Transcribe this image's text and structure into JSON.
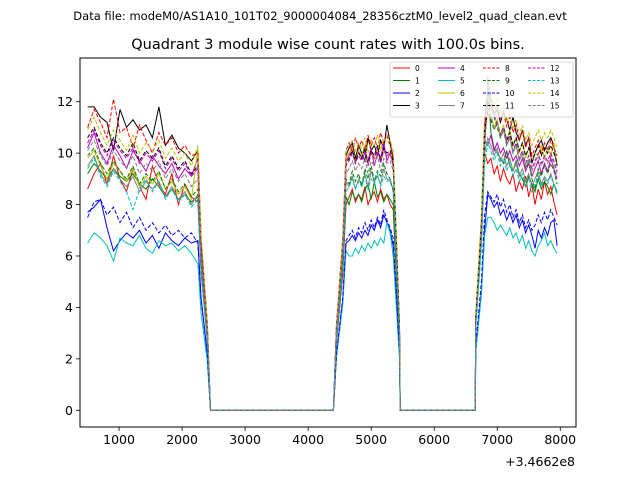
{
  "suptitle": "Data file: modeM0/AS1A10_101T02_9000004084_28356cztM0_level2_quad_clean.evt",
  "chart_data": {
    "type": "line",
    "title": "Quadrant 3 module wise count rates with 100.0s bins.",
    "xlabel": "",
    "ylabel": "",
    "x_offset_label": "+3.4662e8",
    "xlim": [
      380,
      8250
    ],
    "ylim": [
      -0.65,
      13.7
    ],
    "xticks": [
      1000,
      2000,
      3000,
      4000,
      5000,
      6000,
      7000,
      8000
    ],
    "yticks": [
      0,
      2,
      4,
      6,
      8,
      10,
      12
    ],
    "grid": false,
    "legend_position": "top-right",
    "segments": [
      {
        "start": 500,
        "end": 2250,
        "count": 18
      },
      {
        "start": 2300,
        "end": 2400,
        "count": 2
      },
      {
        "start": 2450,
        "end": 4400,
        "count": 20
      },
      {
        "start": 4450,
        "end": 4550,
        "count": 2
      },
      {
        "start": 4600,
        "end": 5350,
        "count": 16
      },
      {
        "start": 5400,
        "end": 5450,
        "count": 2
      },
      {
        "start": 5460,
        "end": 6650,
        "count": 13
      },
      {
        "start": 6660,
        "end": 6750,
        "count": 2
      },
      {
        "start": 6800,
        "end": 7950,
        "count": 24
      }
    ],
    "series": [
      {
        "name": "0",
        "color": "#ff0000",
        "dash": "solid",
        "levels": [
          8.6,
          9.2,
          9.6,
          8.8,
          9.9,
          9.0,
          8.5,
          9.4,
          8.7,
          8.2,
          9.5,
          8.8,
          8.4,
          9.2,
          8.0,
          8.8,
          8.3,
          8.1
        ],
        "levels2": [
          8.0,
          8.3,
          8.6,
          8.1,
          8.4,
          8.2,
          8.7,
          8.0,
          8.3,
          8.5,
          8.1,
          8.6,
          8.2,
          8.4,
          8.0,
          7.8
        ],
        "levels3": [
          10.0,
          9.6,
          9.8,
          9.2,
          9.5,
          8.9,
          9.4,
          9.0,
          8.8,
          9.2,
          8.5,
          8.9,
          8.6,
          9.1,
          8.3,
          8.8,
          8.0,
          8.6,
          8.2,
          8.9,
          8.4,
          8.7,
          8.1,
          7.6
        ]
      },
      {
        "name": "1",
        "color": "#008000",
        "dash": "solid",
        "levels": [
          9.2,
          9.6,
          9.3,
          9.0,
          9.4,
          9.1,
          8.9,
          9.2,
          8.8,
          8.6,
          9.0,
          8.7,
          8.3,
          8.6,
          8.2,
          8.4,
          8.1,
          8.3
        ],
        "levels2": [
          8.3,
          8.0,
          8.5,
          8.2,
          8.4,
          8.1,
          8.6,
          8.8,
          8.2,
          8.9,
          8.3,
          8.5,
          8.1,
          8.4,
          8.2,
          8.0
        ],
        "levels3": [
          10.5,
          13.0,
          10.8,
          10.2,
          10.0,
          9.8,
          9.6,
          10.1,
          9.5,
          9.3,
          9.7,
          9.2,
          9.0,
          8.7,
          9.1,
          8.8,
          8.5,
          9.0,
          8.6,
          8.9,
          8.7,
          8.4,
          8.8,
          8.5
        ]
      },
      {
        "name": "2",
        "color": "#0000ff",
        "dash": "solid",
        "levels": [
          7.7,
          7.9,
          8.2,
          7.1,
          6.2,
          6.6,
          6.9,
          6.7,
          7.0,
          6.5,
          6.8,
          6.3,
          6.9,
          6.6,
          6.4,
          6.7,
          6.5,
          6.6
        ],
        "levels2": [
          6.5,
          6.6,
          6.8,
          6.6,
          6.9,
          6.7,
          7.0,
          6.8,
          7.2,
          7.0,
          7.4,
          7.1,
          7.6,
          7.3,
          7.0,
          6.4
        ],
        "levels3": [
          7.0,
          8.4,
          8.2,
          7.9,
          8.1,
          7.6,
          7.8,
          7.4,
          7.7,
          7.3,
          7.6,
          7.1,
          7.4,
          6.9,
          7.2,
          6.8,
          6.3,
          7.0,
          6.7,
          7.1,
          6.8,
          7.3,
          7.4,
          6.4
        ]
      },
      {
        "name": "3",
        "color": "#000000",
        "dash": "solid",
        "levels": [
          11.8,
          11.8,
          11.4,
          11.2,
          10.1,
          11.7,
          11.0,
          11.3,
          10.9,
          11.1,
          10.6,
          11.8,
          10.3,
          10.7,
          10.2,
          10.0,
          9.7,
          10.1
        ],
        "levels2": [
          9.9,
          10.2,
          10.4,
          9.8,
          10.3,
          10.0,
          9.7,
          10.6,
          10.1,
          10.3,
          9.9,
          10.5,
          10.2,
          11.1,
          10.4,
          9.8
        ],
        "levels3": [
          11.0,
          12.0,
          11.8,
          11.5,
          11.7,
          11.2,
          11.6,
          11.3,
          10.9,
          11.4,
          10.8,
          10.5,
          10.9,
          10.3,
          10.6,
          9.6,
          10.0,
          10.3,
          10.5,
          10.1,
          10.4,
          10.6,
          10.3,
          9.5
        ]
      },
      {
        "name": "4",
        "color": "#bf00bf",
        "dash": "solid",
        "levels": [
          10.2,
          10.8,
          10.0,
          9.6,
          10.3,
          9.9,
          9.4,
          10.1,
          9.7,
          9.3,
          9.9,
          9.5,
          9.2,
          9.6,
          9.0,
          9.4,
          9.1,
          9.8
        ],
        "levels2": [
          9.7,
          9.9,
          10.3,
          9.6,
          10.1,
          9.8,
          10.0,
          9.7,
          10.2,
          9.5,
          10.0,
          9.8,
          10.4,
          9.7,
          10.0,
          9.5
        ],
        "levels3": [
          10.5,
          10.3,
          10.7,
          10.1,
          10.4,
          10.0,
          10.2,
          9.8,
          10.1,
          9.7,
          9.9,
          9.5,
          9.8,
          9.3,
          9.6,
          9.1,
          9.4,
          9.7,
          9.2,
          9.6,
          9.3,
          9.8,
          9.4,
          9.0
        ]
      },
      {
        "name": "5",
        "color": "#00bfbf",
        "dash": "solid",
        "levels": [
          6.5,
          6.9,
          6.7,
          6.4,
          5.8,
          6.7,
          6.5,
          6.4,
          6.8,
          6.3,
          6.1,
          6.6,
          6.4,
          6.5,
          6.2,
          6.4,
          6.1,
          5.7
        ],
        "levels2": [
          6.2,
          6.0,
          6.0,
          6.3,
          6.1,
          6.4,
          6.2,
          6.5,
          6.3,
          6.6,
          6.4,
          6.7,
          6.5,
          7.3,
          6.9,
          6.0
        ],
        "levels3": [
          6.8,
          7.5,
          7.5,
          7.3,
          7.0,
          7.2,
          7.0,
          6.8,
          7.1,
          6.7,
          6.9,
          6.5,
          6.8,
          6.3,
          6.6,
          6.2,
          6.0,
          6.4,
          6.6,
          6.9,
          6.4,
          6.6,
          6.3,
          6.1
        ]
      },
      {
        "name": "6",
        "color": "#bfbf00",
        "dash": "solid",
        "levels": [
          9.8,
          10.1,
          9.5,
          9.0,
          9.6,
          9.3,
          8.9,
          9.4,
          8.7,
          9.1,
          8.8,
          9.2,
          8.6,
          8.9,
          8.4,
          8.7,
          8.2,
          10.2
        ],
        "levels2": [
          9.8,
          10.0,
          10.2,
          9.7,
          10.1,
          9.9,
          10.3,
          9.6,
          10.0,
          9.8,
          10.2,
          9.7,
          10.1,
          9.9,
          10.0,
          9.6
        ],
        "levels3": [
          10.8,
          11.8,
          11.5,
          11.0,
          11.3,
          10.7,
          11.1,
          10.5,
          10.9,
          10.3,
          10.6,
          10.0,
          10.4,
          9.8,
          10.2,
          9.7,
          10.0,
          9.9,
          10.3,
          9.8,
          10.2,
          9.9,
          10.4,
          9.6
        ]
      },
      {
        "name": "7",
        "color": "#808080",
        "dash": "solid",
        "levels": [
          9.5,
          9.9,
          9.2,
          8.8,
          9.4,
          9.0,
          8.7,
          9.1,
          8.5,
          8.9,
          8.6,
          8.9,
          8.3,
          8.7,
          8.2,
          8.5,
          8.0,
          8.4
        ],
        "levels2": [
          8.9,
          8.7,
          9.1,
          8.6,
          9.0,
          8.8,
          9.2,
          8.7,
          9.3,
          8.9,
          9.1,
          8.8,
          9.4,
          9.0,
          8.9,
          8.6
        ],
        "levels3": [
          10.0,
          10.6,
          10.3,
          9.9,
          10.2,
          9.7,
          10.0,
          9.5,
          9.8,
          9.3,
          9.6,
          9.1,
          9.4,
          8.9,
          9.2,
          8.7,
          9.0,
          9.3,
          8.8,
          9.1,
          8.9,
          9.2,
          8.8,
          8.4
        ]
      },
      {
        "name": "8",
        "color": "#ff0000",
        "dash": "dashed",
        "levels": [
          11.0,
          11.7,
          11.2,
          10.6,
          12.1,
          10.8,
          11.0,
          10.2,
          11.1,
          10.5,
          10.0,
          10.8,
          10.3,
          10.6,
          10.0,
          10.3,
          9.9,
          10.0
        ],
        "levels2": [
          10.1,
          10.4,
          10.0,
          10.6,
          10.2,
          10.5,
          10.1,
          10.7,
          10.3,
          10.6,
          10.2,
          10.8,
          10.4,
          10.7,
          10.3,
          9.9
        ],
        "levels3": [
          11.2,
          12.3,
          12.0,
          11.6,
          11.9,
          11.3,
          11.6,
          11.0,
          11.4,
          10.8,
          11.1,
          10.5,
          10.9,
          10.2,
          10.6,
          9.9,
          10.2,
          10.5,
          10.0,
          10.4,
          10.1,
          10.5,
          10.2,
          9.9
        ]
      },
      {
        "name": "9",
        "color": "#008000",
        "dash": "dashed",
        "levels": [
          9.9,
          10.2,
          9.6,
          9.2,
          9.7,
          9.3,
          9.0,
          9.5,
          8.8,
          9.2,
          8.9,
          9.3,
          8.6,
          9.0,
          8.5,
          8.8,
          8.3,
          8.6
        ],
        "levels2": [
          9.0,
          8.8,
          9.3,
          8.9,
          9.2,
          8.7,
          9.4,
          9.0,
          9.5,
          8.9,
          9.3,
          9.1,
          9.6,
          9.2,
          9.0,
          8.5
        ],
        "levels3": [
          10.2,
          12.5,
          12.1,
          11.4,
          11.0,
          10.6,
          10.9,
          10.3,
          10.6,
          10.0,
          10.3,
          9.7,
          10.0,
          9.4,
          9.7,
          9.0,
          8.6,
          9.4,
          9.1,
          9.5,
          9.2,
          9.6,
          9.3,
          8.8
        ]
      },
      {
        "name": "10",
        "color": "#0000ff",
        "dash": "dashed",
        "levels": [
          7.5,
          8.1,
          8.2,
          7.6,
          7.9,
          7.3,
          7.7,
          7.1,
          7.5,
          7.0,
          7.3,
          6.9,
          7.2,
          6.8,
          7.0,
          6.7,
          6.9,
          6.5
        ],
        "levels2": [
          6.6,
          6.8,
          7.0,
          6.7,
          7.1,
          6.9,
          7.3,
          7.0,
          7.4,
          7.1,
          7.5,
          7.2,
          7.8,
          7.4,
          7.1,
          6.7
        ],
        "levels3": [
          7.6,
          8.5,
          8.3,
          8.1,
          8.4,
          7.9,
          8.2,
          7.7,
          8.0,
          7.5,
          7.8,
          7.3,
          7.6,
          7.1,
          7.4,
          7.0,
          7.2,
          7.6,
          7.3,
          7.7,
          7.4,
          7.8,
          7.5,
          7.2
        ]
      },
      {
        "name": "11",
        "color": "#000000",
        "dash": "dashed",
        "levels": [
          10.6,
          11.0,
          10.4,
          10.0,
          10.6,
          10.2,
          9.9,
          10.4,
          9.7,
          10.1,
          9.8,
          10.2,
          9.5,
          9.9,
          9.4,
          9.7,
          9.2,
          9.5
        ],
        "levels2": [
          9.6,
          9.8,
          10.1,
          9.7,
          10.0,
          9.8,
          10.2,
          9.6,
          10.1,
          9.9,
          10.3,
          9.7,
          10.2,
          10.0,
          10.1,
          9.7
        ],
        "levels3": [
          10.9,
          11.6,
          11.3,
          10.9,
          11.2,
          10.7,
          11.0,
          10.5,
          10.8,
          10.3,
          10.6,
          10.1,
          10.4,
          9.9,
          10.2,
          9.7,
          10.0,
          10.3,
          9.9,
          10.2,
          10.0,
          10.3,
          10.0,
          9.6
        ]
      },
      {
        "name": "12",
        "color": "#bf00bf",
        "dash": "dashed",
        "levels": [
          10.4,
          10.9,
          10.3,
          9.9,
          10.5,
          10.1,
          9.8,
          10.2,
          9.6,
          10.0,
          9.7,
          10.1,
          9.4,
          9.8,
          9.3,
          9.6,
          9.1,
          9.4
        ],
        "levels2": [
          9.5,
          9.7,
          10.0,
          9.6,
          9.9,
          9.7,
          10.1,
          9.5,
          10.0,
          9.8,
          10.2,
          9.6,
          10.1,
          9.9,
          10.0,
          9.6
        ],
        "levels3": [
          10.6,
          12.8,
          12.2,
          11.5,
          11.1,
          10.7,
          11.0,
          10.4,
          10.7,
          10.1,
          10.4,
          9.8,
          10.1,
          9.6,
          9.9,
          9.4,
          9.7,
          10.0,
          9.6,
          9.9,
          9.7,
          10.0,
          9.7,
          9.3
        ]
      },
      {
        "name": "13",
        "color": "#00bfbf",
        "dash": "dashed",
        "levels": [
          9.4,
          9.8,
          9.1,
          8.7,
          9.3,
          8.9,
          8.5,
          7.8,
          8.6,
          9.0,
          8.5,
          8.9,
          8.2,
          8.6,
          8.1,
          8.4,
          7.9,
          8.2
        ],
        "levels2": [
          8.5,
          8.7,
          9.0,
          8.6,
          8.9,
          8.7,
          9.1,
          8.6,
          9.0,
          8.8,
          9.2,
          8.7,
          9.1,
          8.9,
          9.0,
          8.6
        ],
        "levels3": [
          9.6,
          10.4,
          10.1,
          9.7,
          10.0,
          9.5,
          9.8,
          9.3,
          9.6,
          9.1,
          9.4,
          8.9,
          9.2,
          8.7,
          9.0,
          8.5,
          8.8,
          9.1,
          8.7,
          9.0,
          8.8,
          9.1,
          8.8,
          8.4
        ]
      },
      {
        "name": "14",
        "color": "#bfbf00",
        "dash": "dashed",
        "levels": [
          10.9,
          11.4,
          10.8,
          10.3,
          10.9,
          10.5,
          10.1,
          10.7,
          10.0,
          10.4,
          10.1,
          10.5,
          9.8,
          10.2,
          9.7,
          10.0,
          9.5,
          10.3
        ],
        "levels2": [
          10.0,
          10.3,
          10.5,
          10.1,
          10.4,
          10.2,
          10.6,
          10.0,
          10.5,
          10.3,
          10.7,
          10.1,
          10.6,
          10.4,
          10.5,
          10.1
        ],
        "levels3": [
          11.5,
          12.6,
          12.2,
          11.8,
          12.1,
          11.5,
          11.8,
          11.2,
          11.6,
          11.0,
          11.3,
          10.7,
          11.1,
          10.5,
          10.8,
          10.3,
          10.6,
          10.9,
          10.5,
          10.8,
          10.6,
          10.9,
          10.6,
          10.2
        ]
      },
      {
        "name": "15",
        "color": "#808080",
        "dash": "dashed",
        "levels": [
          10.1,
          10.5,
          9.9,
          9.5,
          10.1,
          9.7,
          9.4,
          9.9,
          9.2,
          9.6,
          9.3,
          9.7,
          9.0,
          9.4,
          8.9,
          9.2,
          8.7,
          9.0
        ],
        "levels2": [
          9.2,
          9.4,
          9.7,
          9.3,
          9.6,
          9.4,
          9.8,
          9.2,
          9.7,
          9.5,
          9.9,
          9.3,
          9.8,
          9.6,
          9.7,
          9.3
        ],
        "levels3": [
          10.3,
          11.8,
          11.4,
          10.9,
          11.2,
          10.6,
          10.9,
          10.3,
          10.6,
          10.0,
          10.3,
          9.7,
          10.0,
          9.5,
          9.8,
          9.3,
          9.6,
          9.9,
          9.5,
          9.8,
          9.6,
          9.9,
          9.6,
          9.2
        ]
      }
    ]
  }
}
